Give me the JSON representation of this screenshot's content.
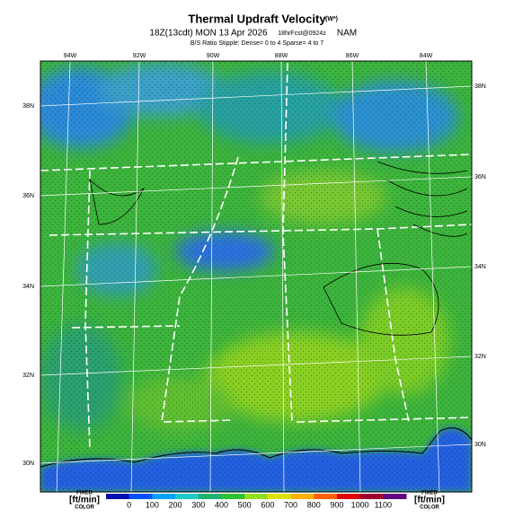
{
  "header": {
    "title": "Thermal Updraft Velocity",
    "title_unit": "(W*)",
    "run": "18Z(13cdt) MON 13 Apr 2026",
    "forecast": "18hrFcst@0924z",
    "model": "NAM",
    "stipple_note": "B/S Ratio Stipple: Dense= 0 to 4  Sparse= 4 to 7"
  },
  "map": {
    "top_lon_labels": [
      "94W",
      "92W",
      "90W",
      "88W",
      "86W",
      "84W"
    ],
    "left_lat_labels": [
      "38N",
      "36N",
      "34N",
      "32N",
      "30N"
    ],
    "right_lat_labels": [
      "38N",
      "36N",
      "34N",
      "32N",
      "30N"
    ]
  },
  "colorbar": {
    "left_label": [
      "FIXED",
      "[ft/min]",
      "COLOR"
    ],
    "right_label": [
      "FIXED",
      "[ft/min]",
      "COLOR"
    ],
    "ticks": [
      0,
      100,
      200,
      300,
      400,
      500,
      600,
      700,
      800,
      900,
      1000,
      1100
    ]
  }
}
